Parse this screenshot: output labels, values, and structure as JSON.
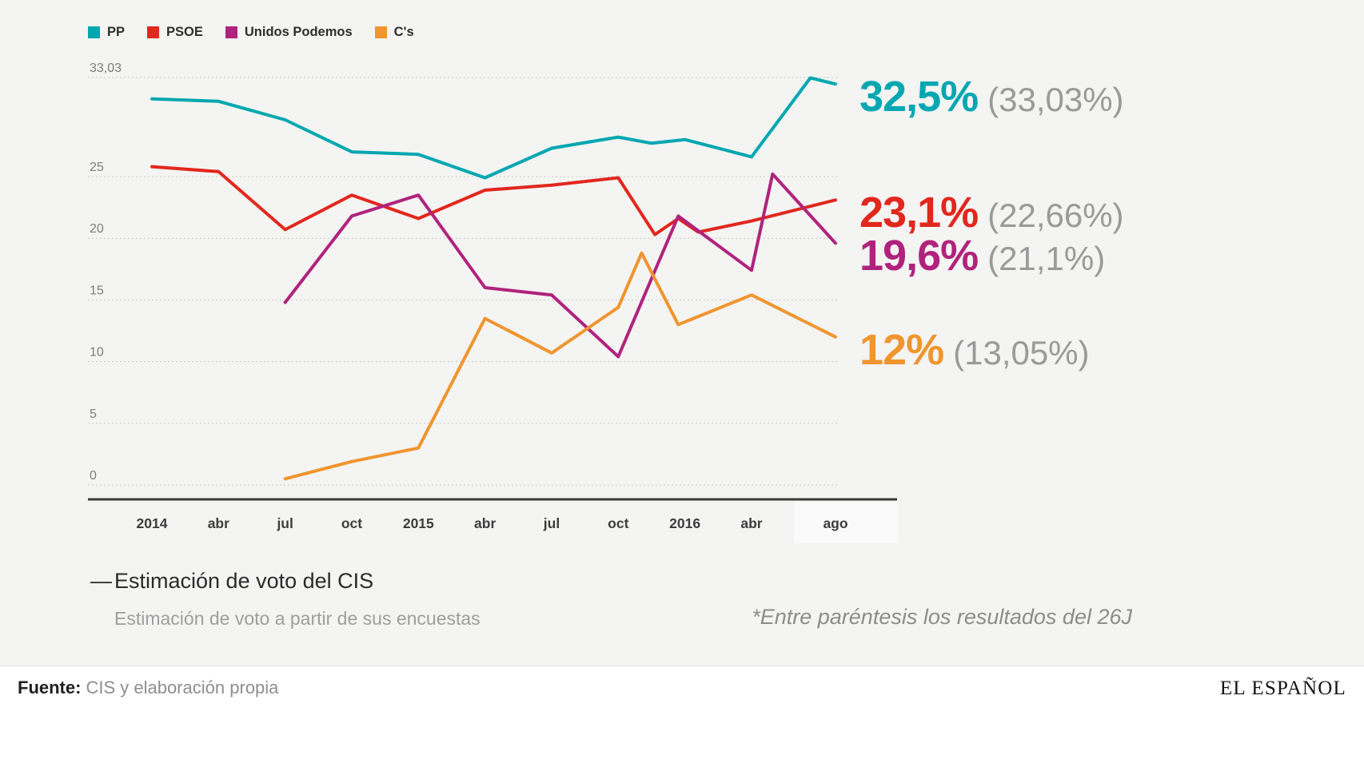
{
  "chart_data": {
    "type": "line",
    "title": "",
    "legend_position": "top-left",
    "grid": "dotted-horizontal",
    "x_ticks": [
      "2014",
      "abr",
      "jul",
      "oct",
      "2015",
      "abr",
      "jul",
      "oct",
      "2016",
      "abr",
      "ago"
    ],
    "y_ticks": [
      {
        "value": 0,
        "label": "0"
      },
      {
        "value": 5,
        "label": "5"
      },
      {
        "value": 10,
        "label": "10"
      },
      {
        "value": 15,
        "label": "15"
      },
      {
        "value": 20,
        "label": "20"
      },
      {
        "value": 25,
        "label": "25"
      },
      {
        "value": 33.03,
        "label": "33,03"
      }
    ],
    "ylim": [
      0,
      34.5
    ],
    "series": [
      {
        "name": "PP",
        "color": "#00a7b0",
        "estimate_label": "32,5%",
        "result_label": "(33,03%)",
        "points": [
          [
            0,
            31.3
          ],
          [
            1,
            31.1
          ],
          [
            2,
            29.6
          ],
          [
            3,
            27.0
          ],
          [
            4,
            26.8
          ],
          [
            5,
            24.9
          ],
          [
            6,
            27.3
          ],
          [
            7,
            28.2
          ],
          [
            7.5,
            27.7
          ],
          [
            8,
            28.0
          ],
          [
            9,
            26.6
          ],
          [
            9.7,
            33.0
          ],
          [
            10,
            32.5
          ]
        ]
      },
      {
        "name": "PSOE",
        "color": "#e2271d",
        "estimate_label": "23,1%",
        "result_label": "(22,66%)",
        "points": [
          [
            0,
            25.8
          ],
          [
            1,
            25.4
          ],
          [
            2,
            20.7
          ],
          [
            3,
            23.5
          ],
          [
            4,
            21.6
          ],
          [
            5,
            23.9
          ],
          [
            6,
            24.3
          ],
          [
            7,
            24.9
          ],
          [
            7.55,
            20.3
          ],
          [
            7.9,
            21.6
          ],
          [
            8.2,
            20.5
          ],
          [
            9,
            21.4
          ],
          [
            10,
            23.1
          ]
        ]
      },
      {
        "name": "Unidos Podemos",
        "color": "#b0237d",
        "estimate_label": "19,6%",
        "result_label": "(21,1%)",
        "points": [
          [
            2,
            14.8
          ],
          [
            3,
            21.8
          ],
          [
            4,
            23.5
          ],
          [
            5,
            16.0
          ],
          [
            6,
            15.4
          ],
          [
            7,
            10.4
          ],
          [
            7.9,
            21.8
          ],
          [
            9,
            17.4
          ],
          [
            9.25,
            25.2
          ],
          [
            10,
            19.6
          ]
        ]
      },
      {
        "name": "C's",
        "color": "#f0952f",
        "estimate_label": "12%",
        "result_label": "(13,05%)",
        "points": [
          [
            2,
            0.5
          ],
          [
            3,
            1.9
          ],
          [
            4,
            3.0
          ],
          [
            5,
            13.5
          ],
          [
            6,
            10.7
          ],
          [
            7,
            14.4
          ],
          [
            7.35,
            18.8
          ],
          [
            7.9,
            13.0
          ],
          [
            9,
            15.4
          ],
          [
            10,
            12.0
          ]
        ]
      }
    ]
  },
  "annotations": {
    "dash": "—",
    "cis_note": "Estimación de voto del CIS",
    "cis_subnote": "Estimación de voto a partir de sus encuestas",
    "right_note": "*Entre paréntesis los resultados del 26J"
  },
  "footer": {
    "source_label": "Fuente:",
    "source_text": "CIS y elaboración propia",
    "brand": "EL ESPAÑOL"
  }
}
